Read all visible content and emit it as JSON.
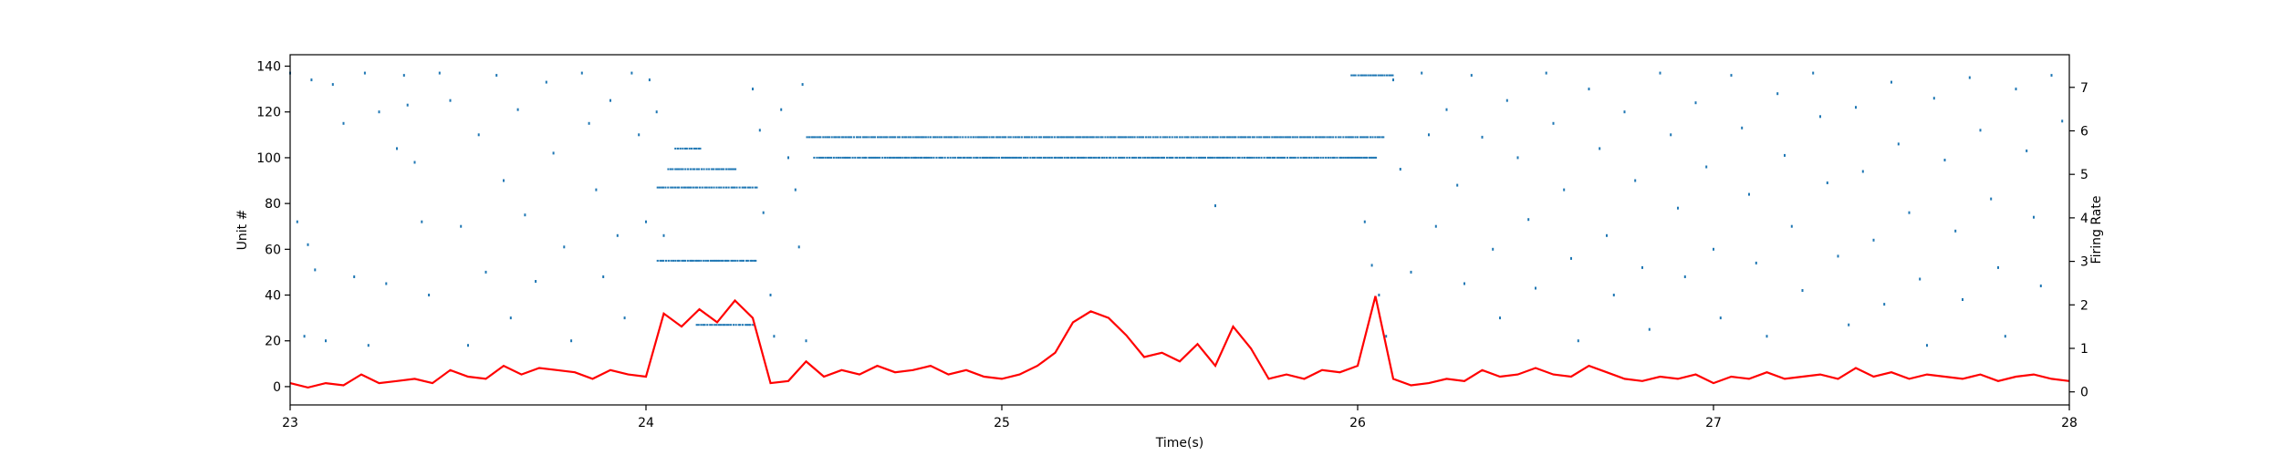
{
  "chart_data": {
    "type": "scatter",
    "title": "",
    "xlabel": "Time(s)",
    "ylabel": "Unit #",
    "y2label": "Firing Rate",
    "xlim": [
      23,
      28
    ],
    "ylim": [
      -8,
      145
    ],
    "y2lim": [
      -0.3,
      7.75
    ],
    "x_ticks": [
      "23",
      "24",
      "25",
      "26",
      "27",
      "28"
    ],
    "y_ticks": [
      "0",
      "20",
      "40",
      "60",
      "80",
      "100",
      "120",
      "140"
    ],
    "y2_ticks": [
      "0",
      "1",
      "2",
      "3",
      "4",
      "5",
      "6",
      "7"
    ],
    "grid": false,
    "legend": "none",
    "colors": {
      "raster": "#1f77b4",
      "rate": "#ff0000",
      "axes": "#000000"
    },
    "series": [
      {
        "kind": "raster",
        "note_rows": "dense tonic rows of spikes (units firing at high rate)",
        "tonic_rows": [
          {
            "unit": 109,
            "x_start": 24.45,
            "x_end": 26.07
          },
          {
            "unit": 100,
            "x_start": 24.47,
            "x_end": 26.05
          },
          {
            "unit": 87,
            "x_start": 24.03,
            "x_end": 24.31
          },
          {
            "unit": 55,
            "x_start": 24.03,
            "x_end": 24.31
          },
          {
            "unit": 95,
            "x_start": 24.06,
            "x_end": 24.25
          },
          {
            "unit": 104,
            "x_start": 24.08,
            "x_end": 24.15
          },
          {
            "unit": 27,
            "x_start": 24.14,
            "x_end": 24.3
          },
          {
            "unit": 136,
            "x_start": 25.98,
            "x_end": 26.1
          }
        ],
        "sparse_spikes": [
          [
            23.0,
            137
          ],
          [
            23.02,
            72
          ],
          [
            23.04,
            22
          ],
          [
            23.05,
            62
          ],
          [
            23.06,
            134
          ],
          [
            23.07,
            51
          ],
          [
            23.1,
            20
          ],
          [
            23.12,
            132
          ],
          [
            23.15,
            115
          ],
          [
            23.18,
            48
          ],
          [
            23.21,
            137
          ],
          [
            23.22,
            18
          ],
          [
            23.25,
            120
          ],
          [
            23.27,
            45
          ],
          [
            23.3,
            104
          ],
          [
            23.32,
            136
          ],
          [
            23.33,
            123
          ],
          [
            23.35,
            98
          ],
          [
            23.37,
            72
          ],
          [
            23.39,
            40
          ],
          [
            23.42,
            137
          ],
          [
            23.45,
            125
          ],
          [
            23.48,
            70
          ],
          [
            23.5,
            18
          ],
          [
            23.53,
            110
          ],
          [
            23.55,
            50
          ],
          [
            23.58,
            136
          ],
          [
            23.6,
            90
          ],
          [
            23.62,
            30
          ],
          [
            23.64,
            121
          ],
          [
            23.66,
            75
          ],
          [
            23.69,
            46
          ],
          [
            23.72,
            133
          ],
          [
            23.74,
            102
          ],
          [
            23.77,
            61
          ],
          [
            23.79,
            20
          ],
          [
            23.82,
            137
          ],
          [
            23.84,
            115
          ],
          [
            23.86,
            86
          ],
          [
            23.88,
            48
          ],
          [
            23.9,
            125
          ],
          [
            23.92,
            66
          ],
          [
            23.94,
            30
          ],
          [
            23.96,
            137
          ],
          [
            23.98,
            110
          ],
          [
            24.0,
            72
          ],
          [
            24.01,
            134
          ],
          [
            24.03,
            120
          ],
          [
            24.05,
            66
          ],
          [
            24.3,
            130
          ],
          [
            24.32,
            112
          ],
          [
            24.33,
            76
          ],
          [
            24.35,
            40
          ],
          [
            24.36,
            22
          ],
          [
            24.38,
            121
          ],
          [
            24.4,
            100
          ],
          [
            24.42,
            86
          ],
          [
            24.43,
            61
          ],
          [
            24.44,
            132
          ],
          [
            24.45,
            20
          ],
          [
            25.6,
            79
          ],
          [
            26.02,
            72
          ],
          [
            26.04,
            53
          ],
          [
            26.06,
            40
          ],
          [
            26.08,
            22
          ],
          [
            26.1,
            134
          ],
          [
            26.12,
            95
          ],
          [
            26.15,
            50
          ],
          [
            26.18,
            137
          ],
          [
            26.2,
            110
          ],
          [
            26.22,
            70
          ],
          [
            26.25,
            121
          ],
          [
            26.28,
            88
          ],
          [
            26.3,
            45
          ],
          [
            26.32,
            136
          ],
          [
            26.35,
            109
          ],
          [
            26.38,
            60
          ],
          [
            26.4,
            30
          ],
          [
            26.42,
            125
          ],
          [
            26.45,
            100
          ],
          [
            26.48,
            73
          ],
          [
            26.5,
            43
          ],
          [
            26.53,
            137
          ],
          [
            26.55,
            115
          ],
          [
            26.58,
            86
          ],
          [
            26.6,
            56
          ],
          [
            26.62,
            20
          ],
          [
            26.65,
            130
          ],
          [
            26.68,
            104
          ],
          [
            26.7,
            66
          ],
          [
            26.72,
            40
          ],
          [
            26.75,
            120
          ],
          [
            26.78,
            90
          ],
          [
            26.8,
            52
          ],
          [
            26.82,
            25
          ],
          [
            26.85,
            137
          ],
          [
            26.88,
            110
          ],
          [
            26.9,
            78
          ],
          [
            26.92,
            48
          ],
          [
            26.95,
            124
          ],
          [
            26.98,
            96
          ],
          [
            27.0,
            60
          ],
          [
            27.02,
            30
          ],
          [
            27.05,
            136
          ],
          [
            27.08,
            113
          ],
          [
            27.1,
            84
          ],
          [
            27.12,
            54
          ],
          [
            27.15,
            22
          ],
          [
            27.18,
            128
          ],
          [
            27.2,
            101
          ],
          [
            27.22,
            70
          ],
          [
            27.25,
            42
          ],
          [
            27.28,
            137
          ],
          [
            27.3,
            118
          ],
          [
            27.32,
            89
          ],
          [
            27.35,
            57
          ],
          [
            27.38,
            27
          ],
          [
            27.4,
            122
          ],
          [
            27.42,
            94
          ],
          [
            27.45,
            64
          ],
          [
            27.48,
            36
          ],
          [
            27.5,
            133
          ],
          [
            27.52,
            106
          ],
          [
            27.55,
            76
          ],
          [
            27.58,
            47
          ],
          [
            27.6,
            18
          ],
          [
            27.62,
            126
          ],
          [
            27.65,
            99
          ],
          [
            27.68,
            68
          ],
          [
            27.7,
            38
          ],
          [
            27.72,
            135
          ],
          [
            27.75,
            112
          ],
          [
            27.78,
            82
          ],
          [
            27.8,
            52
          ],
          [
            27.82,
            22
          ],
          [
            27.85,
            130
          ],
          [
            27.88,
            103
          ],
          [
            27.9,
            74
          ],
          [
            27.92,
            44
          ],
          [
            27.95,
            136
          ],
          [
            27.98,
            116
          ]
        ]
      },
      {
        "kind": "line",
        "x": [
          23.0,
          23.05,
          23.1,
          23.15,
          23.2,
          23.25,
          23.3,
          23.35,
          23.4,
          23.45,
          23.5,
          23.55,
          23.6,
          23.65,
          23.7,
          23.75,
          23.8,
          23.85,
          23.9,
          23.95,
          24.0,
          24.05,
          24.1,
          24.15,
          24.2,
          24.25,
          24.3,
          24.35,
          24.4,
          24.45,
          24.5,
          24.55,
          24.6,
          24.65,
          24.7,
          24.75,
          24.8,
          24.85,
          24.9,
          24.95,
          25.0,
          25.05,
          25.1,
          25.15,
          25.2,
          25.25,
          25.3,
          25.35,
          25.4,
          25.45,
          25.5,
          25.55,
          25.6,
          25.65,
          25.7,
          25.75,
          25.8,
          25.85,
          25.9,
          25.95,
          26.0,
          26.05,
          26.1,
          26.15,
          26.2,
          26.25,
          26.3,
          26.35,
          26.4,
          26.45,
          26.5,
          26.55,
          26.6,
          26.65,
          26.7,
          26.75,
          26.8,
          26.85,
          26.9,
          26.95,
          27.0,
          27.05,
          27.1,
          27.15,
          27.2,
          27.25,
          27.3,
          27.35,
          27.4,
          27.45,
          27.5,
          27.55,
          27.6,
          27.65,
          27.7,
          27.75,
          27.8,
          27.85,
          27.9,
          27.95,
          28.0
        ],
        "values": [
          0.2,
          0.1,
          0.2,
          0.15,
          0.4,
          0.2,
          0.25,
          0.3,
          0.2,
          0.5,
          0.35,
          0.3,
          0.6,
          0.4,
          0.55,
          0.5,
          0.45,
          0.3,
          0.5,
          0.4,
          0.35,
          1.8,
          1.5,
          1.9,
          1.6,
          2.1,
          1.7,
          0.2,
          0.25,
          0.7,
          0.35,
          0.5,
          0.4,
          0.6,
          0.45,
          0.5,
          0.6,
          0.4,
          0.5,
          0.35,
          0.3,
          0.4,
          0.6,
          0.9,
          1.6,
          1.85,
          1.7,
          1.3,
          0.8,
          0.9,
          0.7,
          1.1,
          0.6,
          1.5,
          1.0,
          0.3,
          0.4,
          0.3,
          0.5,
          0.45,
          0.6,
          2.2,
          0.3,
          0.15,
          0.2,
          0.3,
          0.25,
          0.5,
          0.35,
          0.4,
          0.55,
          0.4,
          0.35,
          0.6,
          0.45,
          0.3,
          0.25,
          0.35,
          0.3,
          0.4,
          0.2,
          0.35,
          0.3,
          0.45,
          0.3,
          0.35,
          0.4,
          0.3,
          0.55,
          0.35,
          0.45,
          0.3,
          0.4,
          0.35,
          0.3,
          0.4,
          0.25,
          0.35,
          0.4,
          0.3,
          0.25
        ]
      }
    ]
  }
}
